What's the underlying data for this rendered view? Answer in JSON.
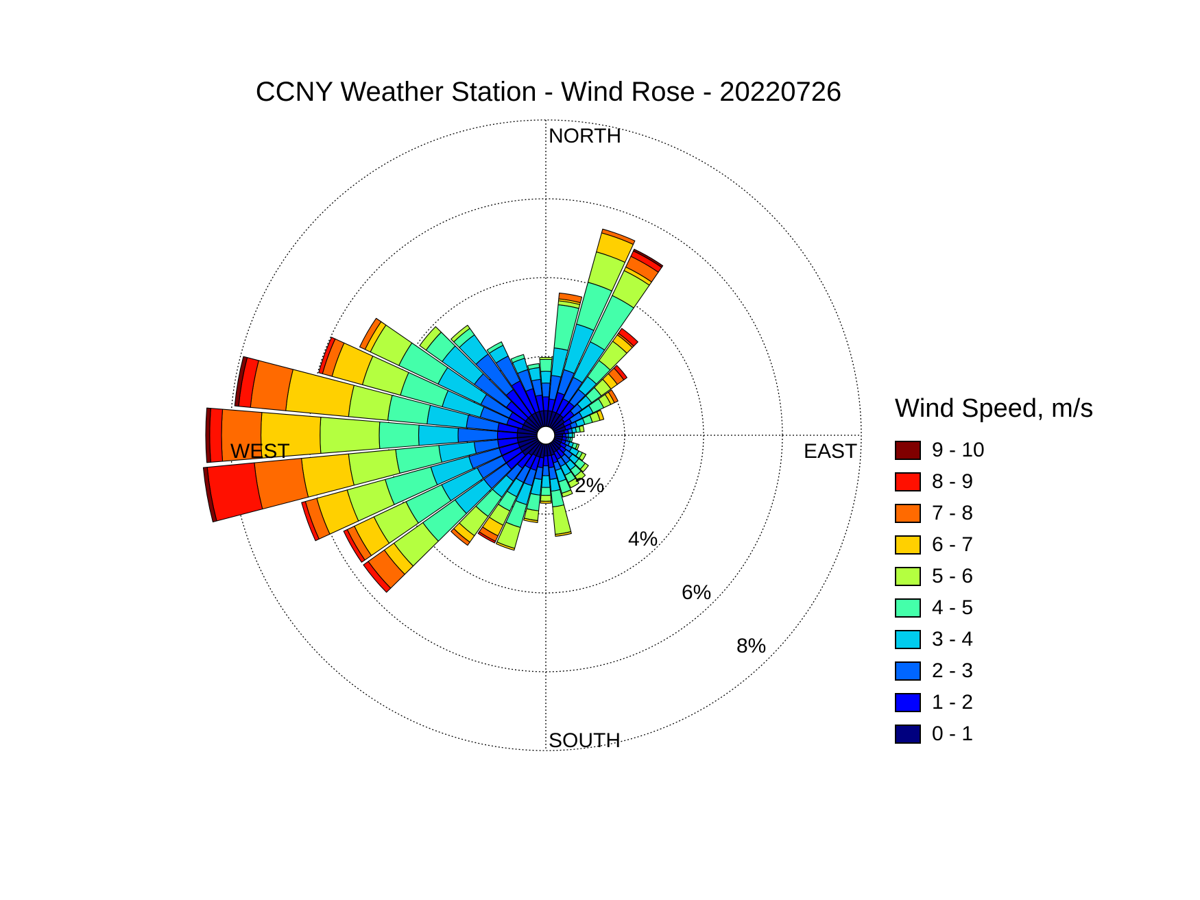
{
  "chart_data": {
    "type": "wind-rose",
    "title": "CCNY Weather Station - Wind Rose - 20220726",
    "legend_title": "Wind Speed, m/s",
    "legend_placement": "right",
    "direction_labels": {
      "north": "NORTH",
      "east": "EAST",
      "south": "SOUTH",
      "west": "WEST"
    },
    "radial_ticks": [
      2,
      4,
      6,
      8
    ],
    "radial_tick_labels": [
      "2%",
      "4%",
      "6%",
      "8%"
    ],
    "r_max": 8,
    "grid": true,
    "bins": [
      {
        "label": "0 - 1",
        "color": "#00007f"
      },
      {
        "label": "1 - 2",
        "color": "#0000ff"
      },
      {
        "label": "2 - 3",
        "color": "#0066ff"
      },
      {
        "label": "3 - 4",
        "color": "#00ccee"
      },
      {
        "label": "4 - 5",
        "color": "#44ffaa"
      },
      {
        "label": "5 - 6",
        "color": "#b4ff40"
      },
      {
        "label": "6 - 7",
        "color": "#ffd000"
      },
      {
        "label": "7 - 8",
        "color": "#ff6a00"
      },
      {
        "label": "8 - 9",
        "color": "#ff1000"
      },
      {
        "label": "9 - 10",
        "color": "#800000"
      }
    ],
    "sectors": [
      {
        "dir": 0,
        "cum": [
          0.4,
          0.75,
          1.1,
          1.4,
          1.7,
          1.75
        ]
      },
      {
        "dir": 10,
        "cum": [
          0.4,
          0.7,
          1.3,
          2.0,
          3.1,
          3.2,
          3.25,
          3.4
        ]
      },
      {
        "dir": 20,
        "cum": [
          0.4,
          0.9,
          1.5,
          2.7,
          3.8,
          4.6,
          5.1,
          5.2
        ]
      },
      {
        "dir": 30,
        "cum": [
          0.4,
          0.8,
          1.4,
          2.4,
          3.7,
          4.4,
          4.5,
          4.8,
          4.95,
          5.0
        ]
      },
      {
        "dir": 40,
        "cum": [
          0.4,
          0.8,
          1.2,
          1.6,
          2.1,
          2.7,
          2.9,
          2.95,
          3.1
        ]
      },
      {
        "dir": 50,
        "cum": [
          0.35,
          0.65,
          0.9,
          1.2,
          1.5,
          1.8,
          2.0,
          2.2,
          2.3
        ]
      },
      {
        "dir": 60,
        "cum": [
          0.3,
          0.5,
          0.8,
          1.1,
          1.4,
          1.6,
          1.7,
          1.8
        ]
      },
      {
        "dir": 70,
        "cum": [
          0.3,
          0.45,
          0.6,
          0.8,
          1.0,
          1.2,
          1.3
        ]
      },
      {
        "dir": 80,
        "cum": [
          0.25,
          0.35,
          0.45,
          0.55,
          0.65,
          0.75
        ]
      },
      {
        "dir": 90,
        "cum": [
          0.2,
          0.28,
          0.35,
          0.45,
          0.5
        ]
      },
      {
        "dir": 100,
        "cum": [
          0.2,
          0.3,
          0.35,
          0.4,
          0.45
        ]
      },
      {
        "dir": 110,
        "cum": [
          0.2,
          0.3,
          0.4,
          0.5,
          0.6,
          0.65
        ]
      },
      {
        "dir": 120,
        "cum": [
          0.2,
          0.35,
          0.5,
          0.7,
          0.8,
          0.9
        ]
      },
      {
        "dir": 130,
        "cum": [
          0.25,
          0.4,
          0.6,
          0.8,
          1.0,
          1.1
        ]
      },
      {
        "dir": 140,
        "cum": [
          0.25,
          0.45,
          0.65,
          0.85,
          1.05,
          1.2
        ]
      },
      {
        "dir": 150,
        "cum": [
          0.25,
          0.45,
          0.65,
          0.9,
          1.1,
          1.25
        ]
      },
      {
        "dir": 160,
        "cum": [
          0.3,
          0.5,
          0.7,
          1.0,
          1.3,
          1.4
        ]
      },
      {
        "dir": 170,
        "cum": [
          0.3,
          0.6,
          0.9,
          1.2,
          1.6,
          2.3,
          2.35
        ]
      },
      {
        "dir": 180,
        "cum": [
          0.3,
          0.55,
          0.8,
          1.1,
          1.3,
          1.45,
          1.5
        ]
      },
      {
        "dir": 190,
        "cum": [
          0.35,
          0.6,
          0.9,
          1.3,
          1.7,
          1.95,
          2.0
        ]
      },
      {
        "dir": 200,
        "cum": [
          0.35,
          0.7,
          1.1,
          1.6,
          2.2,
          2.75,
          2.8
        ]
      },
      {
        "dir": 210,
        "cum": [
          0.35,
          0.7,
          1.1,
          1.5,
          1.9,
          2.3,
          2.6,
          2.75,
          2.8
        ]
      },
      {
        "dir": 220,
        "cum": [
          0.4,
          0.8,
          1.2,
          1.7,
          2.3,
          2.9,
          3.1,
          3.2
        ]
      },
      {
        "dir": 230,
        "cum": [
          0.5,
          1.0,
          1.7,
          2.6,
          3.6,
          4.5,
          4.8,
          5.3,
          5.45
        ]
      },
      {
        "dir": 240,
        "cum": [
          0.5,
          1.0,
          1.7,
          2.7,
          3.7,
          4.6,
          5.15,
          5.35,
          5.45
        ]
      },
      {
        "dir": 250,
        "cum": [
          0.5,
          1.0,
          1.8,
          2.8,
          4.0,
          5.0,
          5.8,
          6.1,
          6.2
        ]
      },
      {
        "dir": 260,
        "cum": [
          0.5,
          1.0,
          1.6,
          2.5,
          3.6,
          4.8,
          6.0,
          7.2,
          8.4,
          8.5
        ]
      },
      {
        "dir": 270,
        "cum": [
          0.5,
          1.0,
          2.0,
          3.0,
          4.0,
          5.5,
          7.0,
          8.0,
          8.3,
          8.4
        ]
      },
      {
        "dir": 280,
        "cum": [
          0.5,
          1.0,
          1.8,
          2.8,
          3.8,
          4.8,
          6.4,
          7.3,
          7.6,
          7.7
        ]
      },
      {
        "dir": 290,
        "cum": [
          0.4,
          0.8,
          1.5,
          2.5,
          3.6,
          4.6,
          5.4,
          5.65,
          5.75
        ]
      },
      {
        "dir": 300,
        "cum": [
          0.4,
          0.8,
          1.6,
          2.8,
          3.9,
          4.7,
          4.85,
          5.0
        ]
      },
      {
        "dir": 310,
        "cum": [
          0.4,
          1.0,
          2.0,
          3.0,
          3.5,
          3.7
        ]
      },
      {
        "dir": 320,
        "cum": [
          0.4,
          1.2,
          2.3,
          2.9,
          3.1,
          3.2
        ]
      },
      {
        "dir": 330,
        "cum": [
          0.4,
          1.3,
          2.0,
          2.3,
          2.4
        ]
      },
      {
        "dir": 340,
        "cum": [
          0.4,
          1.0,
          1.5,
          1.8,
          1.9
        ]
      },
      {
        "dir": 350,
        "cum": [
          0.4,
          0.8,
          1.2,
          1.5,
          1.6
        ]
      }
    ]
  }
}
